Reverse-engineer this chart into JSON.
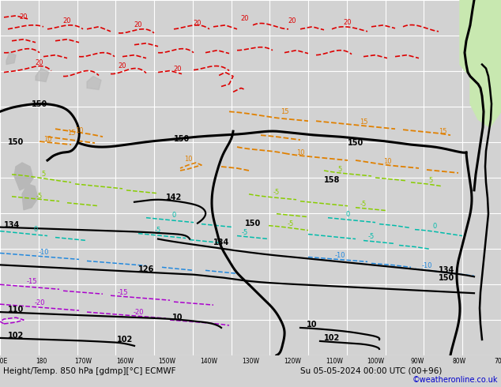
{
  "title_bottom": "Height/Temp. 850 hPa [gdmp][°C] ECMWF",
  "datetime_str": "Su 05-05-2024 00:00 UTC (00+96)",
  "copyright": "©weatheronline.co.uk",
  "bg_color": "#d2d2d2",
  "map_bg": "#e0e0e0",
  "bottom_bar_color": "#b8b8b8",
  "grid_color": "#ffffff",
  "figsize": [
    6.34,
    4.9
  ],
  "dpi": 100,
  "land_green": "#c8e8b0",
  "land_gray": "#b8b8b8",
  "col_red": "#dd0000",
  "col_orange": "#e08000",
  "col_yellow_green": "#88cc00",
  "col_lime": "#88dd00",
  "col_cyan": "#00bbaa",
  "col_blue": "#2288dd",
  "col_purple": "#aa00cc"
}
